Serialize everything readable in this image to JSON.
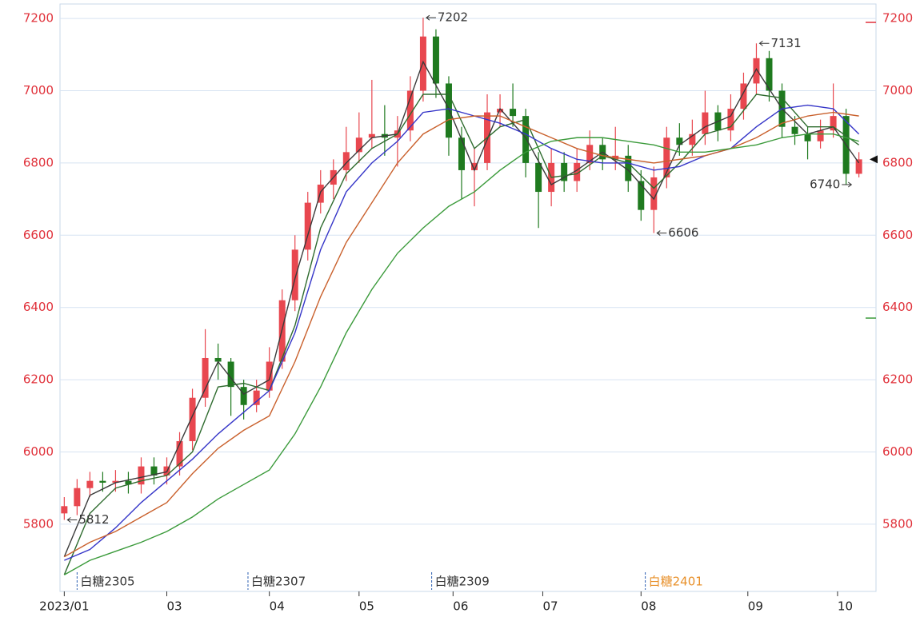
{
  "chart_data": {
    "type": "candlestick",
    "xlim": [
      -1,
      190
    ],
    "xticks": [
      {
        "value": 0,
        "label": "2023/01"
      },
      {
        "value": 24,
        "label": "03"
      },
      {
        "value": 48,
        "label": "04"
      },
      {
        "value": 69,
        "label": "05"
      },
      {
        "value": 91,
        "label": "06"
      },
      {
        "value": 112,
        "label": "07"
      },
      {
        "value": 135,
        "label": "08"
      },
      {
        "value": 160,
        "label": "09"
      },
      {
        "value": 181,
        "label": "10"
      }
    ],
    "ylim": [
      5614,
      7240
    ],
    "yticks": [
      5800,
      6000,
      6200,
      6400,
      6600,
      6800,
      7000,
      7200
    ],
    "y2ticks": [
      5800,
      6000,
      6200,
      6400,
      6600,
      6800,
      7000,
      7200
    ],
    "grid": true,
    "up_color": "#e8474f",
    "down_color": "#1f7a1f",
    "x": [
      0,
      3,
      6,
      9,
      12,
      15,
      18,
      21,
      24,
      27,
      30,
      33,
      36,
      39,
      42,
      45,
      48,
      51,
      54,
      57,
      60,
      63,
      66,
      69,
      72,
      75,
      78,
      81,
      84,
      87,
      90,
      93,
      96,
      99,
      102,
      105,
      108,
      111,
      114,
      117,
      120,
      123,
      126,
      129,
      132,
      135,
      138,
      141,
      144,
      147,
      150,
      153,
      156,
      159,
      162,
      165,
      168,
      171,
      174,
      177,
      180,
      183,
      186
    ],
    "open": [
      5830,
      5850,
      5900,
      5920,
      5915,
      5920,
      5910,
      5960,
      5935,
      5960,
      6030,
      6150,
      6260,
      6250,
      6180,
      6130,
      6170,
      6250,
      6420,
      6560,
      6690,
      6740,
      6780,
      6830,
      6870,
      6880,
      6870,
      6890,
      7000,
      7150,
      7020,
      6870,
      6780,
      6800,
      6940,
      6950,
      6930,
      6800,
      6720,
      6800,
      6750,
      6800,
      6850,
      6810,
      6820,
      6750,
      6670,
      6760,
      6870,
      6850,
      6880,
      6940,
      6890,
      6950,
      7020,
      7090,
      7000,
      6900,
      6880,
      6860,
      6890,
      6930,
      6770
    ],
    "high": [
      5875,
      5925,
      5945,
      5945,
      5950,
      5945,
      5985,
      5985,
      5985,
      6055,
      6175,
      6340,
      6300,
      6260,
      6200,
      6200,
      6290,
      6450,
      6600,
      6720,
      6780,
      6810,
      6900,
      6940,
      7030,
      6960,
      6930,
      7040,
      7202,
      7170,
      7040,
      6900,
      6840,
      6990,
      6990,
      7020,
      6950,
      6830,
      6840,
      6830,
      6840,
      6890,
      6870,
      6900,
      6850,
      6780,
      6790,
      6900,
      6910,
      6920,
      7000,
      6960,
      6990,
      7050,
      7131,
      7110,
      7020,
      6930,
      6900,
      6920,
      7020,
      6950,
      6830
    ],
    "low": [
      5812,
      5825,
      5875,
      5890,
      5890,
      5885,
      5885,
      5910,
      5910,
      5935,
      6005,
      6125,
      6200,
      6100,
      6090,
      6110,
      6150,
      6230,
      6390,
      6530,
      6660,
      6700,
      6750,
      6800,
      6840,
      6820,
      6790,
      6860,
      6970,
      6980,
      6820,
      6700,
      6680,
      6780,
      6900,
      6900,
      6760,
      6620,
      6680,
      6720,
      6720,
      6780,
      6780,
      6780,
      6720,
      6640,
      6606,
      6730,
      6820,
      6820,
      6850,
      6860,
      6860,
      6920,
      6990,
      6970,
      6870,
      6850,
      6810,
      6840,
      6870,
      6740,
      6760
    ],
    "close": [
      5850,
      5900,
      5920,
      5915,
      5920,
      5910,
      5960,
      5935,
      5960,
      6030,
      6150,
      6260,
      6250,
      6180,
      6130,
      6170,
      6250,
      6420,
      6560,
      6690,
      6740,
      6780,
      6830,
      6870,
      6880,
      6870,
      6890,
      7000,
      7150,
      7020,
      6870,
      6780,
      6800,
      6940,
      6950,
      6930,
      6800,
      6720,
      6800,
      6750,
      6800,
      6850,
      6810,
      6820,
      6750,
      6670,
      6760,
      6870,
      6850,
      6880,
      6940,
      6890,
      6950,
      7020,
      7090,
      7000,
      6900,
      6880,
      6860,
      6890,
      6930,
      6770,
      6810
    ],
    "line_x": [
      0,
      6,
      12,
      18,
      24,
      30,
      36,
      42,
      48,
      54,
      60,
      66,
      72,
      78,
      84,
      90,
      96,
      102,
      108,
      114,
      120,
      126,
      132,
      138,
      144,
      150,
      156,
      162,
      168,
      174,
      180,
      186
    ],
    "lines": [
      {
        "color": "#3a3a3a",
        "values": [
          5710,
          5880,
          5915,
          5930,
          5945,
          6100,
          6250,
          6160,
          6200,
          6480,
          6720,
          6800,
          6870,
          6880,
          7080,
          6950,
          6780,
          6950,
          6870,
          6740,
          6780,
          6830,
          6780,
          6700,
          6850,
          6900,
          6930,
          7060,
          6950,
          6880,
          6900,
          6800
        ]
      },
      {
        "color": "#2e6b2e",
        "values": [
          5660,
          5830,
          5900,
          5920,
          5935,
          6000,
          6180,
          6190,
          6170,
          6350,
          6620,
          6770,
          6840,
          6880,
          6990,
          6990,
          6840,
          6900,
          6920,
          6760,
          6770,
          6820,
          6800,
          6730,
          6800,
          6880,
          6900,
          6990,
          6980,
          6900,
          6900,
          6850
        ]
      },
      {
        "color": "#3535c8",
        "values": [
          5700,
          5730,
          5790,
          5860,
          5920,
          5980,
          6050,
          6110,
          6170,
          6330,
          6560,
          6720,
          6800,
          6860,
          6940,
          6950,
          6930,
          6910,
          6880,
          6840,
          6810,
          6800,
          6800,
          6780,
          6790,
          6820,
          6840,
          6900,
          6950,
          6960,
          6950,
          6880
        ]
      },
      {
        "color": "#c9602c",
        "values": [
          5710,
          5750,
          5780,
          5820,
          5860,
          5940,
          6010,
          6060,
          6100,
          6250,
          6430,
          6580,
          6690,
          6800,
          6880,
          6920,
          6930,
          6930,
          6900,
          6870,
          6840,
          6820,
          6810,
          6800,
          6810,
          6820,
          6840,
          6870,
          6910,
          6930,
          6940,
          6930
        ]
      },
      {
        "color": "#3a9a3a",
        "values": [
          5660,
          5700,
          5725,
          5750,
          5780,
          5820,
          5870,
          5910,
          5950,
          6050,
          6180,
          6330,
          6450,
          6550,
          6620,
          6680,
          6720,
          6780,
          6830,
          6860,
          6870,
          6870,
          6860,
          6850,
          6830,
          6830,
          6840,
          6850,
          6870,
          6880,
          6880,
          6860
        ]
      }
    ],
    "annotations": [
      {
        "x": 84,
        "value": 7202,
        "direction": "left"
      },
      {
        "x": 162,
        "value": 7131,
        "direction": "left"
      },
      {
        "x": 138,
        "value": 6606,
        "direction": "left"
      },
      {
        "x": 0,
        "value": 5812,
        "direction": "left"
      },
      {
        "x": 185,
        "value": 6740,
        "direction": "right"
      }
    ],
    "contracts": [
      {
        "label": "白糖2305",
        "x": 3,
        "color": "#333333"
      },
      {
        "label": "白糖2307",
        "x": 43,
        "color": "#333333"
      },
      {
        "label": "白糖2309",
        "x": 86,
        "color": "#333333"
      },
      {
        "label": "白糖2401",
        "x": 136,
        "color": "#e8902a"
      }
    ]
  }
}
